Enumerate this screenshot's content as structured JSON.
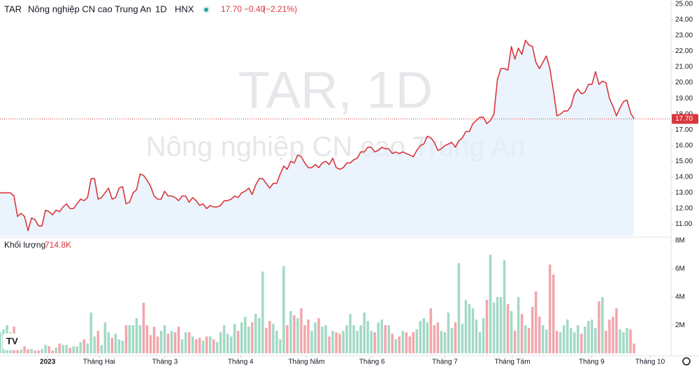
{
  "chart_data": {
    "type": "line",
    "symbol": "TAR",
    "name": "Nông nghiệp CN cao Trung An",
    "interval": "1D",
    "exchange": "HNX",
    "last": {
      "value": 17.7,
      "label": "17.70"
    },
    "change": "−0.40",
    "change_pct": "(−2.21%)",
    "watermark": [
      "TAR, 1D",
      "Nông nghiệp CN cao Trung An"
    ],
    "color": "#d9363e",
    "area_color": "#e3effb",
    "ylim": [
      10.27,
      25.26
    ],
    "yticks": [
      {
        "value": 11,
        "label": "11.00"
      },
      {
        "value": 12,
        "label": "12.00"
      },
      {
        "value": 13,
        "label": "13.00"
      },
      {
        "value": 14,
        "label": "14.00"
      },
      {
        "value": 15,
        "label": "15.00"
      },
      {
        "value": 16,
        "label": "16.00"
      },
      {
        "value": 17,
        "label": "17.00"
      },
      {
        "value": 18,
        "label": "18.00"
      },
      {
        "value": 19,
        "label": "19.00"
      },
      {
        "value": 20,
        "label": "20.00"
      },
      {
        "value": 21,
        "label": "21.00"
      },
      {
        "value": 22,
        "label": "22.00"
      },
      {
        "value": 23,
        "label": "23.00"
      },
      {
        "value": 24,
        "label": "24.00"
      },
      {
        "value": 25,
        "label": "25.00"
      }
    ],
    "xlim": [
      0,
      181
    ],
    "xticks": [
      {
        "value": 13.6,
        "label": "2023"
      },
      {
        "value": 28.3,
        "label": "Tháng Hai"
      },
      {
        "value": 47.1,
        "label": "Tháng 3"
      },
      {
        "value": 68.7,
        "label": "Tháng 4"
      },
      {
        "value": 87.5,
        "label": "Tháng Năm"
      },
      {
        "value": 106.2,
        "label": "Tháng 6"
      },
      {
        "value": 127,
        "label": "Tháng 7"
      },
      {
        "value": 146.3,
        "label": "Tháng Tám"
      },
      {
        "value": 168.9,
        "label": "Tháng 9"
      },
      {
        "value": 185.6,
        "label": "Tháng 10"
      }
    ],
    "values": [
      13.0,
      13.0,
      13.0,
      13.0,
      12.8,
      11.5,
      11.7,
      11.5,
      10.6,
      11.4,
      11.3,
      10.9,
      10.9,
      11.9,
      11.8,
      11.6,
      11.9,
      11.8,
      12.1,
      12.3,
      12.0,
      12.0,
      12.3,
      12.6,
      12.5,
      12.7,
      13.9,
      13.9,
      12.6,
      12.7,
      13.0,
      13.3,
      12.6,
      12.7,
      13.3,
      13.4,
      12.3,
      12.4,
      13.0,
      13.2,
      14.2,
      14.1,
      13.8,
      13.4,
      12.8,
      12.6,
      12.6,
      13.1,
      12.8,
      12.8,
      12.7,
      12.5,
      12.8,
      12.8,
      12.4,
      12.7,
      12.5,
      12.2,
      12.3,
      12.0,
      12.2,
      12.1,
      12.1,
      12.2,
      12.5,
      12.5,
      12.6,
      12.8,
      12.7,
      13.0,
      13.1,
      13.3,
      12.9,
      13.5,
      13.9,
      13.9,
      13.6,
      13.3,
      13.6,
      13.6,
      14.2,
      14.7,
      14.5,
      15.0,
      14.9,
      15.4,
      15.3,
      14.9,
      14.6,
      14.6,
      14.8,
      14.6,
      14.9,
      15.0,
      14.8,
      15.2,
      14.6,
      14.5,
      14.6,
      14.9,
      14.9,
      15.1,
      15.2,
      15.6,
      15.6,
      15.9,
      15.9,
      15.6,
      15.7,
      15.9,
      15.8,
      15.8,
      15.5,
      15.6,
      15.5,
      15.6,
      15.5,
      15.4,
      15.3,
      15.7,
      16.0,
      16.1,
      16.6,
      16.5,
      16.2,
      15.7,
      15.8,
      16.0,
      16.1,
      16.2,
      15.9,
      16.3,
      16.5,
      16.9,
      16.9,
      17.4,
      17.6,
      17.8,
      17.8,
      17.4,
      17.6,
      18.0,
      20.2,
      20.9,
      20.9,
      20.8,
      22.3,
      21.5,
      22.2,
      21.8,
      22.7,
      22.4,
      22.3,
      21.3,
      20.9,
      21.3,
      21.7,
      20.9,
      19.5,
      17.9,
      18.0,
      18.2,
      18.2,
      18.5,
      19.3,
      19.6,
      19.3,
      19.4,
      19.9,
      19.9,
      20.7,
      19.9,
      20.1,
      20.0,
      19.0,
      18.5,
      17.9,
      18.4,
      18.8,
      18.9,
      18.1,
      17.7
    ],
    "volume": {
      "title": "Khối lượng",
      "last_label": "714.8K",
      "up_color": "#a3d9c6",
      "down_color": "#f2a6ab",
      "ylim": [
        0,
        8
      ],
      "yticks": [
        {
          "value": 2,
          "label": "2M"
        },
        {
          "value": 4,
          "label": "4M"
        },
        {
          "value": 6,
          "label": "6M"
        },
        {
          "value": 8,
          "label": "8M"
        }
      ],
      "values": [
        1.5,
        1.7,
        2.0,
        1.5,
        1.9,
        0.9,
        0.4,
        0.5,
        0.3,
        0.3,
        0.2,
        0.2,
        0.3,
        0.6,
        0.5,
        0.2,
        0.4,
        0.7,
        0.6,
        0.6,
        0.4,
        0.5,
        0.5,
        0.8,
        1.0,
        0.7,
        2.9,
        1.2,
        1.6,
        0.6,
        2.2,
        1.5,
        1.1,
        1.4,
        1.0,
        0.9,
        2.0,
        2.0,
        2.0,
        2.5,
        2.0,
        3.6,
        2.0,
        1.3,
        1.9,
        1.2,
        1.6,
        2.0,
        1.4,
        1.6,
        1.5,
        1.9,
        1.0,
        1.5,
        1.5,
        1.2,
        1.0,
        1.1,
        0.9,
        1.2,
        1.2,
        1.0,
        0.8,
        1.5,
        2.0,
        1.4,
        1.2,
        2.1,
        1.6,
        2.2,
        2.6,
        1.9,
        2.2,
        2.8,
        2.5,
        5.8,
        1.8,
        2.3,
        2.1,
        1.6,
        1.0,
        6.2,
        2.0,
        3.0,
        2.7,
        2.5,
        3.2,
        2.0,
        2.4,
        1.6,
        2.2,
        2.5,
        1.9,
        2.0,
        1.2,
        1.6,
        1.5,
        1.4,
        1.6,
        2.0,
        2.8,
        2.0,
        1.6,
        2.0,
        2.9,
        2.3,
        1.6,
        1.5,
        2.2,
        2.4,
        2.0,
        2.0,
        1.4,
        1.0,
        1.2,
        1.6,
        1.5,
        1.2,
        1.5,
        1.7,
        2.3,
        2.5,
        2.2,
        3.2,
        2.0,
        2.2,
        1.6,
        1.5,
        2.9,
        1.8,
        2.2,
        6.4,
        2.1,
        3.8,
        3.5,
        3.2,
        2.4,
        1.5,
        2.5,
        3.8,
        7.0,
        3.6,
        4.0,
        4.0,
        6.6,
        3.5,
        3.0,
        1.6,
        4.0,
        2.8,
        2.0,
        1.8,
        3.3,
        4.4,
        2.6,
        2.0,
        1.7,
        6.3,
        5.6,
        1.6,
        1.5,
        2.0,
        2.4,
        1.8,
        1.5,
        2.0,
        1.4,
        1.9,
        2.3,
        2.4,
        1.8,
        3.7,
        4.0,
        1.6,
        2.4,
        2.6,
        3.2,
        1.7,
        1.5,
        1.8,
        1.7,
        0.7
      ]
    }
  }
}
